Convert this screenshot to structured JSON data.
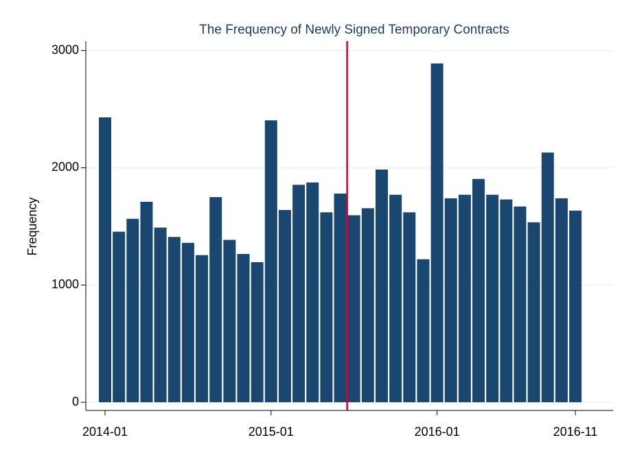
{
  "chart_data": {
    "type": "bar",
    "title": "The Frequency of Newly Signed Temporary Contracts",
    "y_label": "Frequency",
    "categories": [
      "2014-01",
      null,
      null,
      null,
      null,
      null,
      null,
      null,
      null,
      null,
      null,
      null,
      "2015-01",
      null,
      null,
      null,
      null,
      null,
      null,
      null,
      null,
      null,
      null,
      null,
      "2016-01",
      null,
      null,
      null,
      null,
      null,
      null,
      null,
      null,
      null,
      "2016-11"
    ],
    "values": [
      2430,
      1455,
      1565,
      1710,
      1490,
      1410,
      1360,
      1255,
      1750,
      1385,
      1265,
      1195,
      2405,
      1640,
      1855,
      1875,
      1620,
      1780,
      1595,
      1655,
      1985,
      1770,
      1620,
      1220,
      2890,
      1740,
      1770,
      1905,
      1770,
      1730,
      1670,
      1535,
      2130,
      1740,
      1635
    ],
    "color": "#1a476f",
    "ylim": [
      -70,
      3080
    ],
    "yticks": [
      0,
      1000,
      2000,
      3000
    ],
    "grid": true,
    "vline": {
      "x": 17.5,
      "color": "#c10534"
    }
  }
}
